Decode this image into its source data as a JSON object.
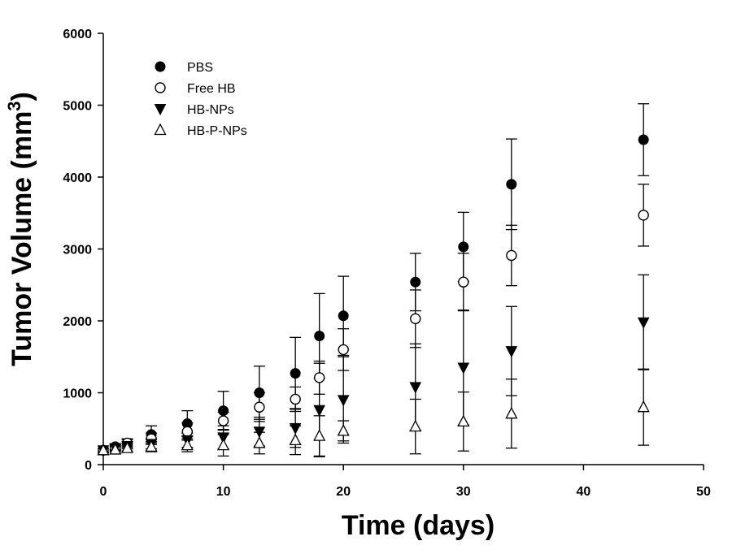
{
  "chart_data": {
    "type": "scatter",
    "xlabel": "Time (days)",
    "ylabel": "Tumor Volume (mm3)",
    "ylabel_main": "Tumor Volume (mm",
    "ylabel_sup": "3",
    "ylabel_end": ")",
    "xlim": [
      0,
      50
    ],
    "ylim": [
      0,
      6000
    ],
    "xticks": [
      0,
      10,
      20,
      30,
      40,
      50
    ],
    "yticks": [
      0,
      1000,
      2000,
      3000,
      4000,
      5000,
      6000
    ],
    "grid": false,
    "legend_position": "top-left",
    "series": [
      {
        "name": "PBS",
        "marker": "filled-circle",
        "x": [
          0,
          1,
          2,
          4,
          7,
          10,
          13,
          16,
          18,
          20,
          26,
          30,
          34,
          45
        ],
        "y": [
          200,
          250,
          300,
          420,
          570,
          750,
          1000,
          1270,
          1790,
          2070,
          2540,
          3030,
          3900,
          4520
        ],
        "err": [
          30,
          40,
          60,
          120,
          180,
          270,
          370,
          500,
          590,
          550,
          400,
          480,
          630,
          500
        ]
      },
      {
        "name": "Free HB",
        "marker": "open-circle",
        "x": [
          0,
          1,
          2,
          4,
          7,
          10,
          13,
          16,
          18,
          20,
          26,
          30,
          34,
          45
        ],
        "y": [
          200,
          240,
          300,
          360,
          460,
          610,
          800,
          910,
          1210,
          1600,
          2030,
          2540,
          2910,
          3470
        ],
        "err": [
          30,
          40,
          50,
          80,
          120,
          120,
          200,
          170,
          230,
          290,
          400,
          400,
          420,
          430
        ]
      },
      {
        "name": "HB-NPs",
        "marker": "filled-triangle-down",
        "x": [
          0,
          1,
          2,
          4,
          7,
          10,
          13,
          16,
          18,
          20,
          26,
          30,
          34,
          45
        ],
        "y": [
          200,
          230,
          260,
          290,
          340,
          380,
          460,
          510,
          760,
          900,
          1080,
          1350,
          1580,
          1980
        ],
        "err": [
          30,
          40,
          40,
          70,
          100,
          160,
          200,
          270,
          650,
          600,
          600,
          800,
          620,
          660
        ]
      },
      {
        "name": "HB-P-NPs",
        "marker": "open-triangle-up",
        "x": [
          0,
          1,
          2,
          4,
          7,
          10,
          13,
          16,
          18,
          20,
          26,
          30,
          34,
          45
        ],
        "y": [
          200,
          210,
          230,
          250,
          270,
          270,
          300,
          340,
          400,
          470,
          530,
          600,
          710,
          800
        ],
        "err": [
          30,
          40,
          40,
          70,
          90,
          150,
          150,
          200,
          280,
          140,
          380,
          410,
          480,
          530
        ]
      }
    ]
  }
}
